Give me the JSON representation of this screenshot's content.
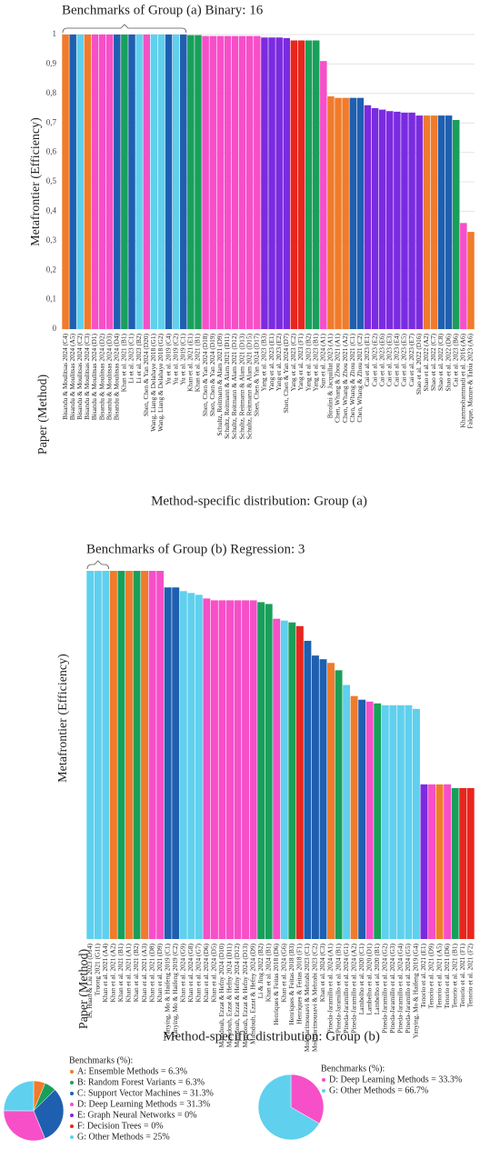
{
  "chart_data": [
    {
      "type": "bar",
      "title": "Benchmarks of Group (a) Binary: 16",
      "y_label": "Metafrontier (Efficiency)",
      "x_label": "Paper (Method)",
      "caption": "Method-specific distribution: Group (a)",
      "categories": [
        "Bisandu & Moulitsas 2024 (C4)",
        "Bisandu & Moulitsas 2024 (A5)",
        "Bisandu & Moulitsas 2024 (C2)",
        "Bisandu & Moulitsas 2024 (C3)",
        "Bisandu & Moulitsas 2024 (D1)",
        "Bisandu & Moulitsas 2024 (D2)",
        "Bisandu & Moulitsas 2024 (D3)",
        "Bisandu & Moulitsas 2024 (D4)",
        "Khan et al. 2021 (B1)",
        "Li et al. 2023 (C1)",
        "Li et al. 2023 (B2)",
        "Shen, Chen & Yan 2024 (D20)",
        "Wang, Liang & Delahaye 2018 (G1)",
        "Wang, Liang & Delahaye 2018 (G2)",
        "Yu et al. 2019 (C4)",
        "Yu et al. 2019 (C2)",
        "Yu et al. 2019 (C1)",
        "Khan et al. 2021 (E1)",
        "Khan et al. 2021 (B1)",
        "Shen, Chen & Yan 2024 (D18)",
        "Shen, Chen & Yan 2024 (D19)",
        "Schultz, Reitmann & Alam 2021 (D9)",
        "Schultz, Reitmann & Alam 2021 (D11)",
        "Schultz, Reitmann & Alam 2021 (D12)",
        "Schultz, Reitmann & Alam 2021 (D13)",
        "Schultz, Reitmann & Alam 2021 (D15)",
        "Shen, Chen & Yan 2024 (D17)",
        "Yang et al. 2023 (B3)",
        "Yang et al. 2023 (E1)",
        "Yang et al. 2023 (E2)",
        "Shen, Chen & Yan 2024 (D7)",
        "Yang et al. 2023 (C2)",
        "Yang et al. 2023 (F1)",
        "Yang et al. 2023 (B2)",
        "Yang et al. 2023 (B1)",
        "Sun et al. 2024 (A1)",
        "Birolini & Jacquillat 2023 (A1)",
        "Chen, Whang & Zhou 2021 (A1)",
        "Chen, Whang & Zhou 2021 (A2)",
        "Chen, Whang & Zhou 2021 (C1)",
        "Chen, Whang & Zhou 2021 (C2)",
        "Cai et al. 2023 (E1)",
        "Cai et al. 2023 (E2)",
        "Cai et al. 2023 (E6)",
        "Cai et al. 2023 (E3)",
        "Cai et al. 2023 (E4)",
        "Cai et al. 2023 (E5)",
        "Cai et al. 2023 (E7)",
        "Shao et al. 2022 (D16)",
        "Shao et al. 2022 (A2)",
        "Shao et al. 2022 (C7)",
        "Shao et al. 2022 (C8)",
        "Shao et al. 2022 (D6)",
        "Cai et al. 2023 (B6)",
        "Khammohammadi et al. 2016 (A6)",
        "Falque, Mazure & Tabia 2023 (A6)"
      ],
      "values": [
        1,
        1,
        1,
        1,
        1,
        1,
        1,
        1,
        1,
        1,
        1,
        1,
        1,
        1,
        1,
        1,
        1,
        0.998,
        0.998,
        0.995,
        0.995,
        0.995,
        0.995,
        0.995,
        0.995,
        0.995,
        0.995,
        0.99,
        0.99,
        0.99,
        0.988,
        0.98,
        0.98,
        0.98,
        0.98,
        0.91,
        0.79,
        0.785,
        0.785,
        0.785,
        0.785,
        0.76,
        0.75,
        0.745,
        0.74,
        0.738,
        0.735,
        0.735,
        0.725,
        0.725,
        0.725,
        0.725,
        0.725,
        0.71,
        0.36,
        0.33
      ],
      "colors": [
        "#f07b2b",
        "#1f5fb0",
        "#5fd0ee",
        "#f07b2b",
        "#f74fc8",
        "#f74fc8",
        "#f74fc8",
        "#1f5fb0",
        "#18a05a",
        "#1f5fb0",
        "#5fd0ee",
        "#f74fc8",
        "#5fd0ee",
        "#5fd0ee",
        "#1f5fb0",
        "#5fd0ee",
        "#1f5fb0",
        "#18a05a",
        "#18a05a",
        "#f74fc8",
        "#f74fc8",
        "#f74fc8",
        "#f74fc8",
        "#f74fc8",
        "#f74fc8",
        "#f74fc8",
        "#f74fc8",
        "#7a2be0",
        "#7a2be0",
        "#7a2be0",
        "#7a2be0",
        "#e8261e",
        "#e8261e",
        "#18a05a",
        "#18a05a",
        "#f74fc8",
        "#f07b2b",
        "#f07b2b",
        "#f07b2b",
        "#1f5fb0",
        "#1f5fb0",
        "#7a2be0",
        "#7a2be0",
        "#7a2be0",
        "#7a2be0",
        "#7a2be0",
        "#7a2be0",
        "#7a2be0",
        "#7a2be0",
        "#f07b2b",
        "#f07b2b",
        "#1f5fb0",
        "#1f5fb0",
        "#18a05a",
        "#f74fc8",
        "#f07b2b"
      ],
      "ylim": [
        0,
        1
      ],
      "yticks": [
        0,
        {
          "value": 0.1,
          "label": "0,1"
        },
        {
          "value": 0.2,
          "label": "0,2"
        },
        {
          "value": 0.3,
          "label": "0,3"
        },
        {
          "value": 0.4,
          "label": "0,4"
        },
        {
          "value": 0.5,
          "label": "0,5"
        },
        {
          "value": 0.6,
          "label": "0,6"
        },
        {
          "value": 0.7,
          "label": "0,7"
        },
        {
          "value": 0.8,
          "label": "0,8"
        },
        {
          "value": 0.9,
          "label": "0,9"
        },
        1
      ],
      "grid": true
    },
    {
      "type": "bar",
      "title": "Benchmarks of Group (b) Regression: 3",
      "y_label": "Metafrontier (Efficiency)",
      "x_label": "Paper (Method)",
      "caption": "Method-specific distribution: Group (b)",
      "categories": [
        "Li, Huan & Liu 2023 (D14)",
        "Truong 2021 (G11)",
        "Khan et al. 2021 (A4)",
        "Khan et al. 2021 (A2)",
        "Khan et al. 2021 (B1)",
        "Khan et al. 2021 (A1)",
        "Khan et al. 2021 (B2)",
        "Khan et al. 2021 (A3)",
        "Khan et al. 2021 (D8)",
        "Khan et al. 2021 (D9)",
        "Yanying, Mo & Haifeng 2019 (C1)",
        "Yanying, Mo & Haifeng 2019 (C2)",
        "Khan et al. 2024 (G9)",
        "Khan et al. 2024 (G8)",
        "Khan et al. 2024 (G7)",
        "Khan et al. 2024 (D6)",
        "Khan et al. 2024 (D5)",
        "Mamdouh, Ezzat & Hefny 2024 (D10)",
        "Mamdouh, Ezzat & Hefny 2024 (D11)",
        "Mamdouh, Ezzat & Hefny 2024 (D12)",
        "Mamdouh, Ezzat & Hefny 2024 (D13)",
        "Mamdouh, Ezzat & Hefny 2024 (D9)",
        "Li & Jing 2022 (B2)",
        "Khan et al. 2024 (B1)",
        "Henriques & Feitas 2018 (D6)",
        "Khan et al. 2024 (G6)",
        "Henriques & Feitas 2018 (B3)",
        "Henriques & Feitas 2018 (F1)",
        "Mokhtarimousavi & Mehrabi 2023 (C1)",
        "Mokhtarimousavi & Mehrabi 2023 (C2)",
        "Khan et al. 2024 (C3)",
        "Pineda-Jaramillo et al. 2024 (A1)",
        "Pineda-Jaramillo et al. 2024 (B1)",
        "Pineda-Jaramillo et al. 2024 (G1)",
        "Pineda-Jaramillo et al. 2024 (A2)",
        "Lambelho et al. 2020 (C1)",
        "Lambelho et al. 2020 (D1)",
        "Lambelho et al. 2020 (B1)",
        "Pineda-Jaramillo et al. 2024 (G2)",
        "Pineda-Jaramillo et al. 2024 (G3)",
        "Pineda-Jaramillo et al. 2024 (G4)",
        "Pineda-Jaramillo et al. 2024 (G5)",
        "Yanying, Mo & Haifeng 2019 (G4)",
        "Tenorio et al. 2021 (E1)",
        "Tenorio et al. 2021 (D9)",
        "Tenorio et al. 2021 (A5)",
        "Tenorio et al. 2021 (D6)",
        "Tenorio et al. 2021 (B1)",
        "Tenorio et al. 2021 (F1)",
        "Tenorio et al. 2021 (F2)"
      ],
      "values": [
        1,
        1,
        1,
        1,
        1,
        1,
        1,
        1,
        1,
        1,
        0.955,
        0.955,
        0.945,
        0.94,
        0.935,
        0.925,
        0.92,
        0.92,
        0.92,
        0.92,
        0.92,
        0.92,
        0.915,
        0.91,
        0.87,
        0.865,
        0.86,
        0.85,
        0.81,
        0.77,
        0.76,
        0.75,
        0.73,
        0.69,
        0.66,
        0.65,
        0.645,
        0.64,
        0.635,
        0.635,
        0.635,
        0.635,
        0.625,
        0.42,
        0.42,
        0.42,
        0.42,
        0.41,
        0.41,
        0.41
      ],
      "colors": [
        "#5fd0ee",
        "#5fd0ee",
        "#5fd0ee",
        "#f07b2b",
        "#18a05a",
        "#f07b2b",
        "#18a05a",
        "#f07b2b",
        "#f74fc8",
        "#f74fc8",
        "#1f5fb0",
        "#1f5fb0",
        "#5fd0ee",
        "#5fd0ee",
        "#5fd0ee",
        "#f74fc8",
        "#f74fc8",
        "#f74fc8",
        "#f74fc8",
        "#f74fc8",
        "#f74fc8",
        "#f74fc8",
        "#18a05a",
        "#18a05a",
        "#f74fc8",
        "#5fd0ee",
        "#18a05a",
        "#e8261e",
        "#1f5fb0",
        "#1f5fb0",
        "#1f5fb0",
        "#f07b2b",
        "#18a05a",
        "#5fd0ee",
        "#f07b2b",
        "#1f5fb0",
        "#f74fc8",
        "#18a05a",
        "#5fd0ee",
        "#5fd0ee",
        "#5fd0ee",
        "#5fd0ee",
        "#5fd0ee",
        "#7a2be0",
        "#f74fc8",
        "#f07b2b",
        "#f74fc8",
        "#18a05a",
        "#e8261e",
        "#e8261e"
      ],
      "ylim": [
        0,
        1
      ]
    },
    {
      "type": "pie",
      "title": "Benchmarks (%):",
      "categories": [
        "A: Ensemble Methods = 6.3%",
        "B: Random Forest Variants = 6.3%",
        "C: Support Vector Machines = 31.3%",
        "D: Deep Learning Methods = 31.3%",
        "E: Graph Neural Networks = 0%",
        "F: Decision Trees = 0%",
        "G: Other Methods = 25%"
      ],
      "values": [
        6.3,
        6.3,
        31.3,
        31.3,
        0,
        0,
        25
      ],
      "colors": [
        "#f07b2b",
        "#18a05a",
        "#1f5fb0",
        "#f74fc8",
        "#7a2be0",
        "#e8261e",
        "#5fd0ee"
      ]
    },
    {
      "type": "pie",
      "title": "Benchmarks (%):",
      "categories": [
        "D: Deep Learning Methods = 33.3%",
        "G: Other Methods = 66.7%"
      ],
      "values": [
        33.3,
        66.7
      ],
      "colors": [
        "#f74fc8",
        "#5fd0ee"
      ]
    }
  ]
}
